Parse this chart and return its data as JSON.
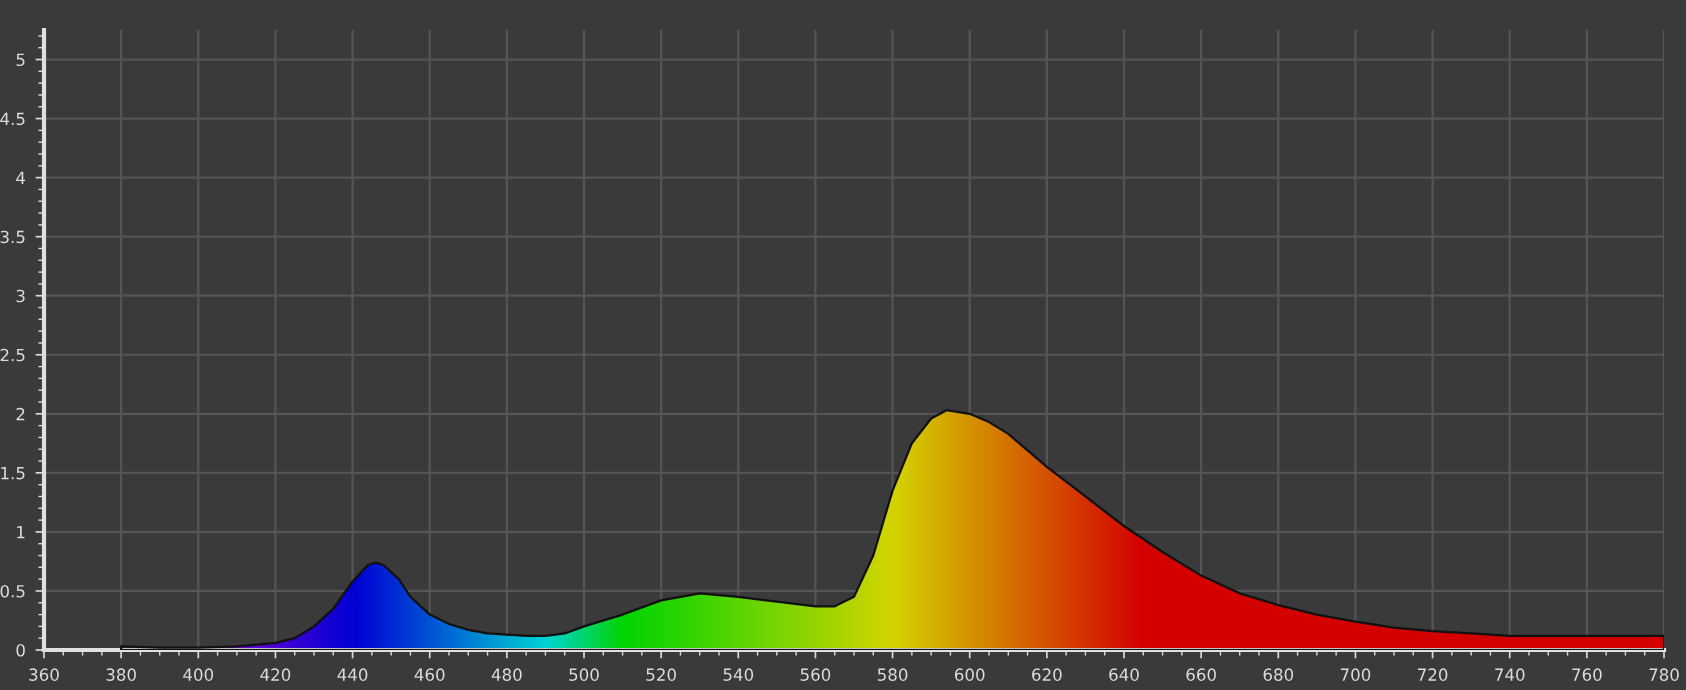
{
  "chart_data": {
    "type": "area",
    "x": [
      380,
      390,
      400,
      410,
      420,
      425,
      430,
      435,
      440,
      444,
      446,
      448,
      452,
      455,
      460,
      465,
      470,
      475,
      480,
      485,
      490,
      495,
      500,
      510,
      520,
      530,
      540,
      550,
      560,
      565,
      570,
      575,
      580,
      585,
      590,
      594,
      600,
      605,
      610,
      620,
      630,
      640,
      650,
      660,
      670,
      680,
      690,
      700,
      710,
      720,
      730,
      740,
      750,
      760,
      770,
      780
    ],
    "values": [
      0.03,
      0.02,
      0.02,
      0.03,
      0.06,
      0.1,
      0.2,
      0.35,
      0.58,
      0.72,
      0.74,
      0.72,
      0.6,
      0.45,
      0.3,
      0.22,
      0.17,
      0.14,
      0.13,
      0.12,
      0.12,
      0.14,
      0.2,
      0.3,
      0.42,
      0.48,
      0.45,
      0.41,
      0.37,
      0.37,
      0.45,
      0.8,
      1.35,
      1.75,
      1.96,
      2.03,
      2.0,
      1.93,
      1.83,
      1.55,
      1.3,
      1.05,
      0.83,
      0.63,
      0.48,
      0.38,
      0.3,
      0.24,
      0.19,
      0.16,
      0.14,
      0.12,
      0.12,
      0.12,
      0.12,
      0.12
    ],
    "xlim": [
      360,
      780
    ],
    "ylim": [
      0,
      5.25
    ],
    "xticks": [
      360,
      380,
      400,
      420,
      440,
      460,
      480,
      500,
      520,
      540,
      560,
      580,
      600,
      620,
      640,
      660,
      680,
      700,
      720,
      740,
      760,
      780
    ],
    "yticks": [
      0,
      0.5,
      1,
      1.5,
      2,
      2.5,
      3,
      3.5,
      4,
      4.5,
      5
    ],
    "grid": true
  }
}
